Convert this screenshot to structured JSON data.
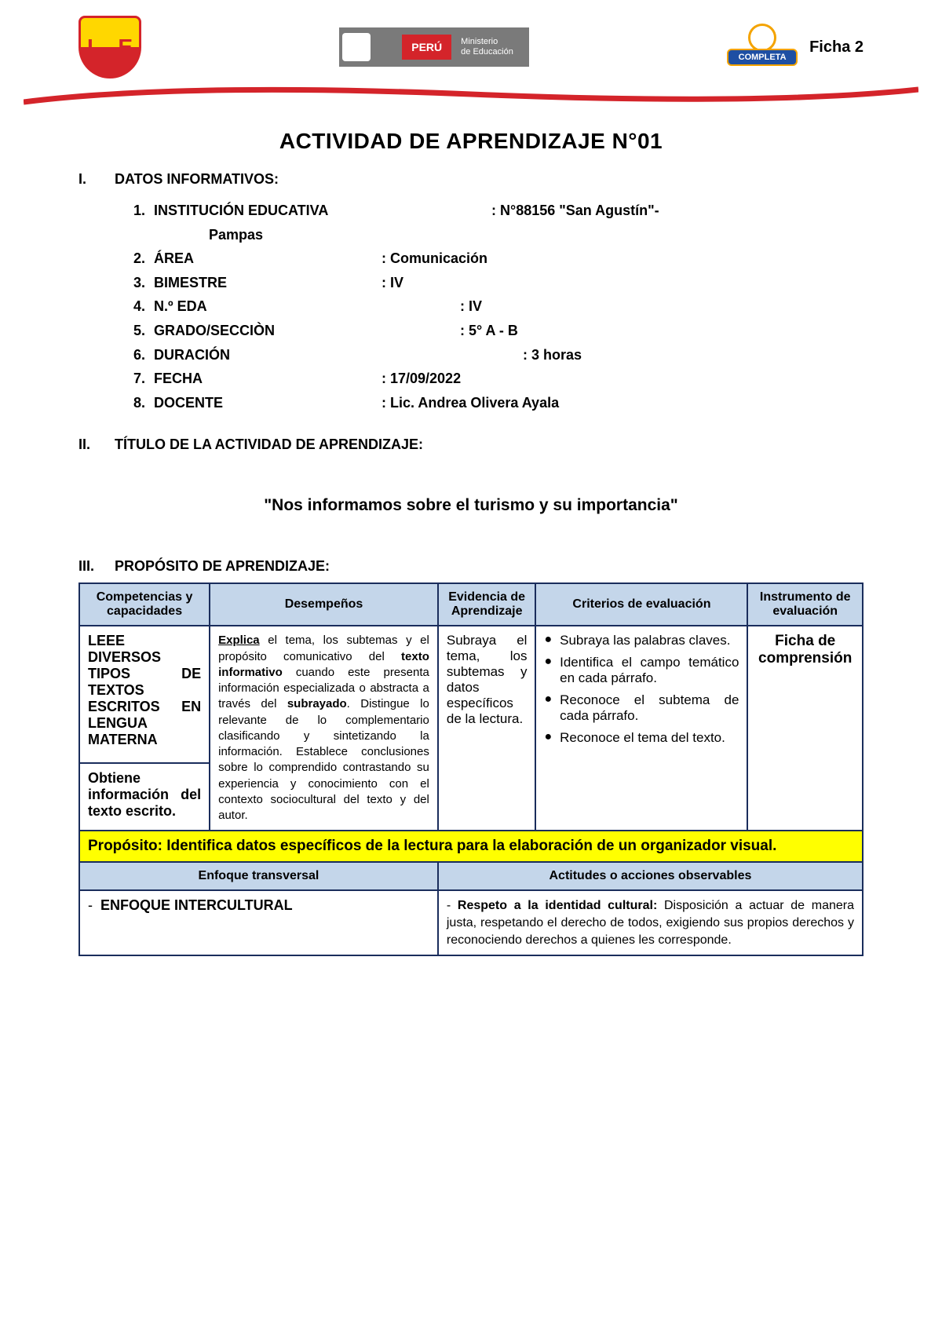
{
  "header": {
    "shield_left": "I",
    "shield_right": "E",
    "peru_label": "PERÚ",
    "ministry_line1": "Ministerio",
    "ministry_line2": "de Educación",
    "jec_text": "COMPLETA",
    "ficha_label": "Ficha 2"
  },
  "main_title": "ACTIVIDAD DE APRENDIZAJE N°01",
  "section1": {
    "roman": "I.",
    "title": "DATOS INFORMATIVOS:",
    "items": [
      {
        "n": "1.",
        "label": "INSTITUCIÓN EDUCATIVA",
        "val": ": N°88156 \"San Agustín\"-"
      },
      {
        "n": "",
        "label": "Pampas",
        "val": ""
      },
      {
        "n": "2.",
        "label": "ÁREA",
        "val": ": Comunicación"
      },
      {
        "n": "3.",
        "label": "BIMESTRE",
        "val": ": IV"
      },
      {
        "n": "4.",
        "label": "N.º EDA",
        "val": ": IV"
      },
      {
        "n": "5.",
        "label": "GRADO/SECCIÒN",
        "val": ": 5° A - B"
      },
      {
        "n": "6.",
        "label": "DURACIÓN",
        "val": ":   3 horas"
      },
      {
        "n": "7.",
        "label": "FECHA",
        "val": ": 17/09/2022"
      },
      {
        "n": "8.",
        "label": "DOCENTE",
        "val": ": Lic. Andrea Olivera Ayala"
      }
    ]
  },
  "section2": {
    "roman": "II.",
    "title": "TÍTULO DE LA ACTIVIDAD DE APRENDIZAJE:",
    "activity_title": "\"Nos informamos sobre el turismo y su importancia\""
  },
  "section3": {
    "roman": "III.",
    "title": "PROPÓSITO DE APRENDIZAJE:"
  },
  "table": {
    "headers": {
      "comp": "Competencias y capacidades",
      "desemp": "Desempeños",
      "evid": "Evidencia de Aprendizaje",
      "crit": "Criterios de evaluación",
      "instr": "Instrumento de evaluación"
    },
    "comp1": "LEEE DIVERSOS TIPOS DE TEXTOS ESCRITOS EN LENGUA MATERNA",
    "comp2": "Obtiene información del texto escrito.",
    "desemp_html": "<span class='u'><b>Explica</b></span> el tema, los subtemas y el propósito comunicativo del <b>texto informativo</b> cuando este presenta información especializada o abstracta a través del <b>subrayado</b>. Distingue lo relevante de lo complementario clasificando y sintetizando la información. Establece conclusiones sobre lo comprendido contrastando su experiencia y conocimiento con el contexto sociocultural del texto y del autor.",
    "evid": "Subraya el tema, los subtemas y datos específicos de la lectura.",
    "criterios": [
      "Subraya las palabras claves.",
      "Identifica el campo temático en cada párrafo.",
      "Reconoce el subtema de cada párrafo.",
      "Reconoce el tema del texto."
    ],
    "instr": "Ficha de comprensión",
    "proposito": "Propósito: Identifica datos específicos de la lectura para la elaboración de un organizador visual.",
    "enfoque_header1": "Enfoque transversal",
    "enfoque_header2": "Actitudes o acciones observables",
    "enfoque_label": "ENFOQUE INTERCULTURAL",
    "actitud_html": "- <b>Respeto a la identidad cultural:</b> Disposición a actuar de manera justa, respetando el derecho de todos, exigiendo sus propios derechos y reconociendo derechos a quienes les corresponde."
  },
  "colors": {
    "border": "#1a2d5c",
    "header_bg": "#c4d6ea",
    "yellow": "#ffff00",
    "red": "#d4242a"
  }
}
